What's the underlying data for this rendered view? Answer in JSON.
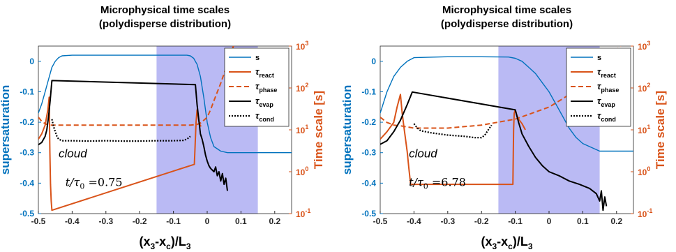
{
  "chart_data": [
    {
      "type": "line",
      "title": "Microphysical time scales",
      "subtitle": "(polydisperse distribution)",
      "xlabel": "(x3-xc)/L3",
      "ylabel_left": "supersaturation",
      "ylabel_right": "Time scale [s]",
      "xlim": [
        -0.5,
        0.25
      ],
      "ylim_left": [
        -0.5,
        0.05
      ],
      "ylim_right": [
        0.1,
        1000
      ],
      "right_scale": "log",
      "x_ticks": [
        "-0.5",
        "-0.4",
        "-0.3",
        "-0.2",
        "-0.1",
        "0",
        "0.1",
        "0.2"
      ],
      "y_left_ticks": [
        "-0.5",
        "-0.4",
        "-0.3",
        "-0.2",
        "-0.1",
        "0"
      ],
      "y_right_ticks": [
        "10",
        "10",
        "10",
        "10",
        "10"
      ],
      "y_right_exponents": [
        "-1",
        "0",
        "1",
        "2",
        "3"
      ],
      "shaded_region": [
        -0.15,
        0.15
      ],
      "annotation_cloud": "cloud",
      "annotation_ratio_label": "t/τ",
      "annotation_ratio_sub": "0",
      "annotation_ratio_value": "=0.75",
      "legend_position": "top-right",
      "legend": [
        "s",
        "τreact",
        "τphase",
        "τevap",
        "τcond"
      ],
      "series": [
        {
          "name": "s",
          "axis": "left",
          "color": "#0072BD",
          "x": [
            -0.5,
            -0.49,
            -0.48,
            -0.47,
            -0.46,
            -0.45,
            -0.44,
            -0.43,
            -0.4,
            -0.3,
            -0.2,
            -0.1,
            -0.06,
            -0.05,
            -0.04,
            -0.03,
            -0.02,
            -0.01,
            0.0,
            0.01,
            0.02,
            0.04,
            0.06,
            0.1,
            0.25
          ],
          "y": [
            -0.17,
            -0.14,
            -0.1,
            -0.06,
            -0.02,
            0.0,
            0.012,
            0.018,
            0.02,
            0.02,
            0.02,
            0.02,
            0.02,
            0.018,
            0.01,
            -0.01,
            -0.05,
            -0.12,
            -0.2,
            -0.25,
            -0.28,
            -0.295,
            -0.3,
            -0.3,
            -0.3
          ]
        },
        {
          "name": "τreact",
          "axis": "right",
          "color": "#D95319",
          "x": [
            -0.5,
            -0.49,
            -0.48,
            -0.472,
            -0.468,
            -0.466,
            -0.464,
            -0.462,
            -0.46,
            -0.038,
            -0.033,
            -0.03,
            -0.027,
            -0.024,
            -0.021,
            -0.018
          ],
          "y": [
            6,
            8,
            13,
            30,
            60,
            3,
            0.5,
            0.2,
            0.12,
            1.5,
            15,
            30,
            22,
            15,
            13,
            12
          ]
        },
        {
          "name": "τphase",
          "axis": "right",
          "color": "#D95319",
          "x": [
            -0.5,
            -0.49,
            -0.48,
            -0.47,
            -0.4,
            -0.3,
            -0.2,
            -0.1,
            -0.05,
            -0.03,
            -0.02,
            -0.01,
            0.0,
            0.01,
            0.02,
            0.03,
            0.04,
            0.05,
            0.06,
            0.07,
            0.08
          ],
          "y": [
            20,
            16,
            14,
            13,
            13,
            13,
            13,
            13,
            13,
            13.5,
            14.5,
            17,
            20,
            30,
            50,
            80,
            130,
            220,
            400,
            700,
            1100
          ]
        },
        {
          "name": "τevap",
          "axis": "right",
          "color": "#000000",
          "x": [
            -0.5,
            -0.49,
            -0.48,
            -0.475,
            -0.47,
            -0.465,
            -0.46,
            -0.035,
            -0.03,
            -0.02,
            -0.015,
            -0.01,
            -0.005,
            0.0,
            0.005,
            0.01,
            0.02,
            0.025,
            0.03,
            0.035,
            0.04,
            0.045,
            0.05,
            0.055,
            0.06
          ],
          "y": [
            4.4,
            5,
            7,
            10,
            20,
            50,
            150,
            120,
            40,
            8,
            6,
            4,
            2.5,
            1.8,
            1.4,
            1.2,
            1.0,
            1.3,
            0.8,
            1.0,
            0.6,
            0.9,
            0.5,
            0.7,
            0.35
          ]
        },
        {
          "name": "τcond",
          "axis": "right",
          "color": "#000000",
          "x": [
            -0.46,
            -0.455,
            -0.45,
            -0.445,
            -0.44,
            -0.43,
            -0.4,
            -0.35,
            -0.3,
            -0.25,
            -0.2,
            -0.15,
            -0.1,
            -0.07,
            -0.06,
            -0.05
          ],
          "y": [
            18,
            12,
            9,
            7,
            6,
            5.5,
            5.5,
            5.4,
            5.5,
            5.4,
            5.4,
            5.5,
            5.5,
            5.6,
            6,
            7
          ]
        }
      ]
    },
    {
      "type": "line",
      "title": "Microphysical time scales",
      "subtitle": "(polydisperse distribution)",
      "xlabel": "(x3-xc)/L3",
      "ylabel_left": "supersaturation",
      "ylabel_right": "Time scale [s]",
      "xlim": [
        -0.5,
        0.25
      ],
      "ylim_left": [
        -0.5,
        0.05
      ],
      "ylim_right": [
        0.1,
        1000
      ],
      "right_scale": "log",
      "x_ticks": [
        "-0.5",
        "-0.4",
        "-0.3",
        "-0.2",
        "-0.1",
        "0",
        "0.1",
        "0.2"
      ],
      "y_left_ticks": [
        "-0.5",
        "-0.4",
        "-0.3",
        "-0.2",
        "-0.1",
        "0"
      ],
      "y_right_ticks": [
        "10",
        "10",
        "10",
        "10",
        "10"
      ],
      "y_right_exponents": [
        "-1",
        "0",
        "1",
        "2",
        "3"
      ],
      "shaded_region": [
        -0.15,
        0.15
      ],
      "annotation_cloud": "cloud",
      "annotation_ratio_label": "t/τ",
      "annotation_ratio_sub": "0",
      "annotation_ratio_value": "=6.78",
      "legend_position": "top-right",
      "legend": [
        "s",
        "τreact",
        "τphase",
        "τevap",
        "τcond"
      ],
      "series": [
        {
          "name": "s",
          "axis": "left",
          "color": "#0072BD",
          "x": [
            -0.5,
            -0.48,
            -0.46,
            -0.44,
            -0.42,
            -0.4,
            -0.3,
            -0.2,
            -0.12,
            -0.1,
            -0.08,
            -0.06,
            -0.04,
            -0.02,
            0.0,
            0.02,
            0.04,
            0.06,
            0.08,
            0.1,
            0.12,
            0.15,
            0.25
          ],
          "y": [
            -0.17,
            -0.1,
            -0.05,
            -0.02,
            0.0,
            0.012,
            0.015,
            0.015,
            0.014,
            0.01,
            0.0,
            -0.02,
            -0.04,
            -0.07,
            -0.1,
            -0.14,
            -0.18,
            -0.22,
            -0.25,
            -0.27,
            -0.28,
            -0.295,
            -0.295
          ]
        },
        {
          "name": "τreact",
          "axis": "right",
          "color": "#D95319",
          "x": [
            -0.5,
            -0.48,
            -0.46,
            -0.45,
            -0.44,
            -0.435,
            -0.43,
            -0.42,
            -0.415,
            -0.41,
            -0.107,
            -0.105,
            -0.103,
            -0.1,
            -0.095,
            -0.09,
            -0.08,
            -0.07
          ],
          "y": [
            6,
            9,
            15,
            35,
            70,
            25,
            12,
            3,
            1.2,
            0.5,
            0.5,
            10,
            25,
            30,
            22,
            18,
            14,
            10
          ]
        },
        {
          "name": "τphase",
          "axis": "right",
          "color": "#D95319",
          "x": [
            -0.5,
            -0.48,
            -0.46,
            -0.44,
            -0.4,
            -0.3,
            -0.2,
            -0.1,
            -0.05,
            0.0,
            0.04,
            0.08,
            0.12,
            0.15,
            0.18,
            0.2,
            0.22,
            0.24
          ],
          "y": [
            20,
            15,
            13,
            12.5,
            11,
            11,
            13,
            18,
            25,
            35,
            55,
            90,
            160,
            280,
            500,
            800,
            1200,
            1500
          ]
        },
        {
          "name": "τevap",
          "axis": "right",
          "color": "#000000",
          "x": [
            -0.5,
            -0.48,
            -0.46,
            -0.44,
            -0.42,
            -0.405,
            -0.1,
            -0.09,
            -0.08,
            -0.06,
            -0.04,
            -0.02,
            0.0,
            0.03,
            0.06,
            0.09,
            0.12,
            0.14,
            0.15,
            0.155,
            0.16,
            0.165,
            0.17
          ],
          "y": [
            4.5,
            5.5,
            9,
            17,
            40,
            80,
            30,
            15,
            8,
            4,
            2.2,
            1.4,
            1.0,
            0.8,
            0.6,
            0.5,
            0.4,
            0.3,
            0.2,
            0.35,
            0.12,
            0.25,
            0.15
          ]
        },
        {
          "name": "τcond",
          "axis": "right",
          "color": "#000000",
          "x": [
            -0.4,
            -0.39,
            -0.38,
            -0.35,
            -0.3,
            -0.25,
            -0.22,
            -0.2,
            -0.19,
            -0.18,
            -0.17
          ],
          "y": [
            14,
            11,
            9.5,
            8.5,
            7.5,
            7,
            6.5,
            6.5,
            7.5,
            10,
            13
          ]
        }
      ]
    }
  ]
}
